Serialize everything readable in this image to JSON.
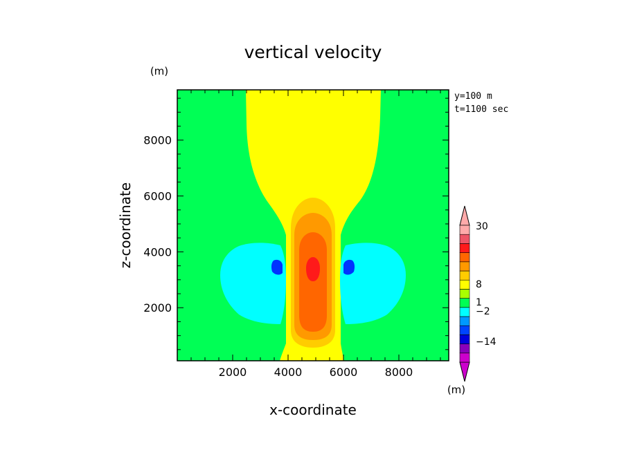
{
  "chart_data": {
    "type": "heatmap",
    "title": "vertical velocity",
    "xlabel": "x-coordinate",
    "ylabel": "z-coordinate",
    "y_unit": "(m)",
    "colorbar_unit": "(m)",
    "annotations": [
      "y=100 m",
      "t=1100 sec"
    ],
    "xlim": [
      0,
      9800
    ],
    "ylim": [
      100,
      9800
    ],
    "x_ticks": [
      2000,
      4000,
      6000,
      8000
    ],
    "y_ticks": [
      2000,
      4000,
      6000,
      8000
    ],
    "grid": false,
    "legend": "right",
    "colorbar": {
      "colors": [
        "#cc00cc",
        "#8800bb",
        "#0000dd",
        "#0044ff",
        "#0099ff",
        "#00ffff",
        "#00ff55",
        "#aaff00",
        "#ffff00",
        "#ffcc00",
        "#ff9900",
        "#ff6600",
        "#ff1a1a",
        "#ee5566",
        "#ffaaaa"
      ],
      "tick_labels": [
        "30",
        "8",
        "1",
        "-2",
        "-14"
      ],
      "tick_values": [
        30,
        8,
        1,
        -2,
        -14
      ]
    },
    "regions": {
      "background": "#00ff55",
      "updraft_plume": "#ffff00",
      "core_outer": "#ffcc00",
      "core_mid": "#ff9900",
      "core_inner": "#ff6600",
      "core_max": "#ff1a1a",
      "downdraft_lobes": "#00ffff",
      "downdraft_min": "#0033ff"
    }
  }
}
